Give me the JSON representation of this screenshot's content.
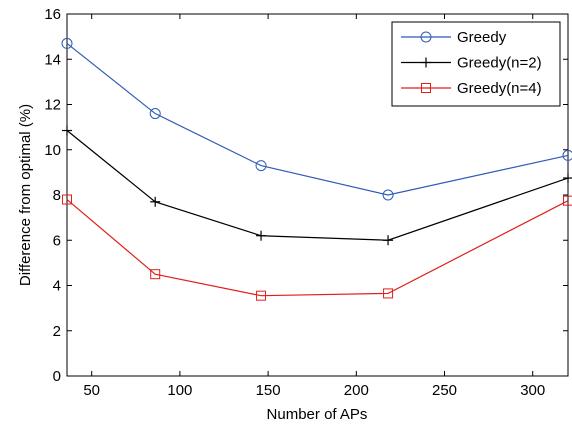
{
  "chart_data": {
    "type": "line",
    "title": "",
    "xlabel": "Number of APs",
    "ylabel": "Difference from optimal (%)",
    "xlim": [
      36,
      320
    ],
    "ylim": [
      0,
      16
    ],
    "xticks": [
      50,
      100,
      150,
      200,
      250,
      300
    ],
    "yticks": [
      0,
      2,
      4,
      6,
      8,
      10,
      12,
      14,
      16
    ],
    "grid": false,
    "legend_position": "top-right",
    "x": [
      36,
      86,
      146,
      218,
      320
    ],
    "series": [
      {
        "name": "Greedy",
        "color": "#2F5BB7",
        "marker": "circle",
        "values": [
          14.7,
          11.6,
          9.3,
          8.0,
          9.75
        ]
      },
      {
        "name": "Greedy(n=2)",
        "color": "#000000",
        "marker": "plus",
        "values": [
          10.85,
          7.7,
          6.2,
          6.0,
          8.75
        ]
      },
      {
        "name": "Greedy(n=4)",
        "color": "#E0201B",
        "marker": "square",
        "values": [
          7.8,
          4.5,
          3.55,
          3.65,
          7.75
        ]
      }
    ]
  }
}
